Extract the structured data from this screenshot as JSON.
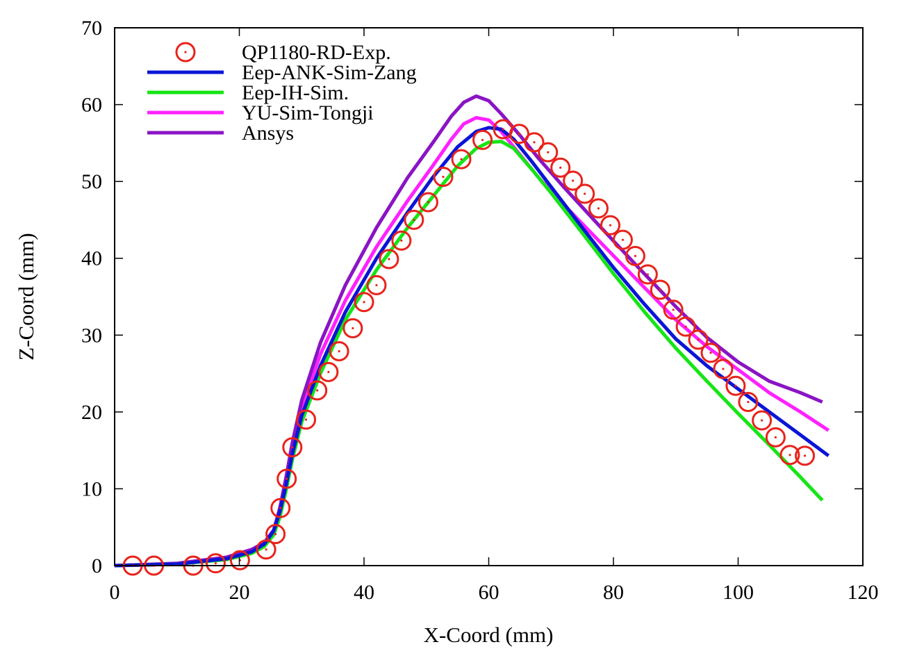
{
  "chart_data": {
    "type": "line",
    "title": "",
    "xlabel": "X-Coord (mm)",
    "ylabel": "Z-Coord (mm)",
    "xlim": [
      0,
      120
    ],
    "ylim": [
      0,
      70
    ],
    "xticks": [
      "0",
      "20",
      "40",
      "60",
      "80",
      "100",
      "120"
    ],
    "yticks": [
      "0",
      "10",
      "20",
      "30",
      "40",
      "50",
      "60",
      "70"
    ],
    "grid": false,
    "legend_position": "top-left",
    "series": [
      {
        "name": "QP1180-RD-Exp.",
        "style": "markers",
        "color": "#e8231b",
        "x": [
          2.9,
          6.3,
          12.6,
          16.2,
          20.1,
          24.3,
          25.8,
          26.6,
          27.6,
          28.5,
          30.7,
          32.5,
          34.3,
          36.0,
          38.2,
          40.0,
          42.0,
          44.0,
          46.0,
          48.0,
          50.3,
          52.7,
          55.6,
          59.0,
          62.3,
          64.9,
          67.3,
          69.5,
          71.5,
          73.5,
          75.4,
          77.6,
          79.5,
          81.5,
          83.5,
          85.5,
          87.5,
          89.6,
          91.6,
          93.6,
          95.6,
          97.6,
          99.6,
          101.6,
          103.8,
          106.0,
          108.3,
          110.7
        ],
        "y": [
          0.0,
          0.0,
          0.0,
          0.3,
          0.7,
          2.1,
          4.1,
          7.5,
          11.3,
          15.4,
          19.0,
          22.8,
          25.2,
          27.9,
          30.9,
          34.3,
          36.5,
          39.9,
          42.3,
          45.0,
          47.3,
          50.6,
          52.9,
          55.4,
          56.8,
          56.2,
          55.1,
          53.8,
          51.8,
          50.1,
          48.4,
          46.5,
          44.3,
          42.4,
          40.3,
          37.9,
          35.9,
          33.3,
          31.1,
          29.4,
          27.7,
          25.6,
          23.4,
          21.3,
          18.9,
          16.7,
          14.4,
          14.3
        ]
      },
      {
        "name": "Eep-ANK-Sim-Zang",
        "style": "line",
        "color": "#0a15d6",
        "x": [
          0,
          10,
          18,
          22,
          24,
          25.5,
          26.5,
          27.5,
          28.5,
          30,
          33,
          37,
          42,
          47,
          51,
          55,
          58,
          60,
          62,
          64,
          67,
          70,
          75,
          80,
          85,
          90,
          95,
          100,
          105,
          110,
          114.5
        ],
        "y": [
          0,
          0.2,
          0.9,
          1.8,
          2.8,
          4.5,
          7.0,
          10.5,
          14.5,
          19.5,
          26.0,
          33.0,
          40.0,
          46.0,
          50.5,
          54.5,
          56.5,
          57.0,
          56.8,
          55.5,
          52.5,
          49.3,
          44.0,
          38.8,
          34.0,
          29.5,
          26.0,
          23.0,
          20.0,
          17.0,
          14.3
        ]
      },
      {
        "name": "Eep-IH-Sim.",
        "style": "line",
        "color": "#15e515",
        "x": [
          0,
          10,
          18,
          22,
          24,
          25.5,
          26.5,
          27.5,
          28.5,
          30,
          33,
          37,
          42,
          47,
          51,
          55,
          58,
          60,
          62,
          64,
          67,
          70,
          75,
          80,
          85,
          90,
          95,
          100,
          105,
          110,
          113.5
        ],
        "y": [
          0,
          0.2,
          0.8,
          1.6,
          2.5,
          4.0,
          6.3,
          9.8,
          13.8,
          18.7,
          25.0,
          32.0,
          38.5,
          44.0,
          48.0,
          52.0,
          54.3,
          55.1,
          55.2,
          54.3,
          51.5,
          48.5,
          43.3,
          38.0,
          33.0,
          28.3,
          24.0,
          19.8,
          15.7,
          11.5,
          8.5
        ]
      },
      {
        "name": "YU-Sim-Tongji",
        "style": "line",
        "color": "#ff21ff",
        "x": [
          0,
          10,
          18,
          22,
          24,
          25.5,
          26.5,
          27.5,
          28.5,
          30,
          33,
          37,
          42,
          47,
          51,
          54,
          56,
          58,
          60,
          62,
          65,
          68,
          72,
          78,
          84,
          90,
          95,
          100,
          105,
          110,
          114.5
        ],
        "y": [
          0,
          0.2,
          1.0,
          1.9,
          2.9,
          4.6,
          7.3,
          11.0,
          15.2,
          20.5,
          27.5,
          34.5,
          41.5,
          47.5,
          52.0,
          55.5,
          57.5,
          58.3,
          58.0,
          56.5,
          53.5,
          50.5,
          47.0,
          42.0,
          37.0,
          32.0,
          28.5,
          25.5,
          22.5,
          20.0,
          17.6
        ]
      },
      {
        "name": "Ansys",
        "style": "line",
        "color": "#8a14c4",
        "x": [
          0,
          10,
          18,
          22,
          24,
          25.5,
          26.5,
          27.5,
          28.5,
          30,
          33,
          37,
          42,
          47,
          51,
          54,
          56,
          58,
          60,
          62,
          65,
          68,
          72,
          78,
          84,
          90,
          95,
          100,
          105,
          110,
          113.5
        ],
        "y": [
          0,
          0.3,
          1.1,
          2.1,
          3.0,
          4.6,
          7.5,
          11.5,
          16.0,
          21.5,
          29.0,
          36.5,
          44.0,
          50.5,
          55.0,
          58.5,
          60.3,
          61.1,
          60.5,
          58.8,
          56.0,
          53.0,
          49.3,
          44.0,
          38.8,
          33.7,
          29.7,
          26.5,
          24.0,
          22.5,
          21.3
        ]
      }
    ]
  }
}
